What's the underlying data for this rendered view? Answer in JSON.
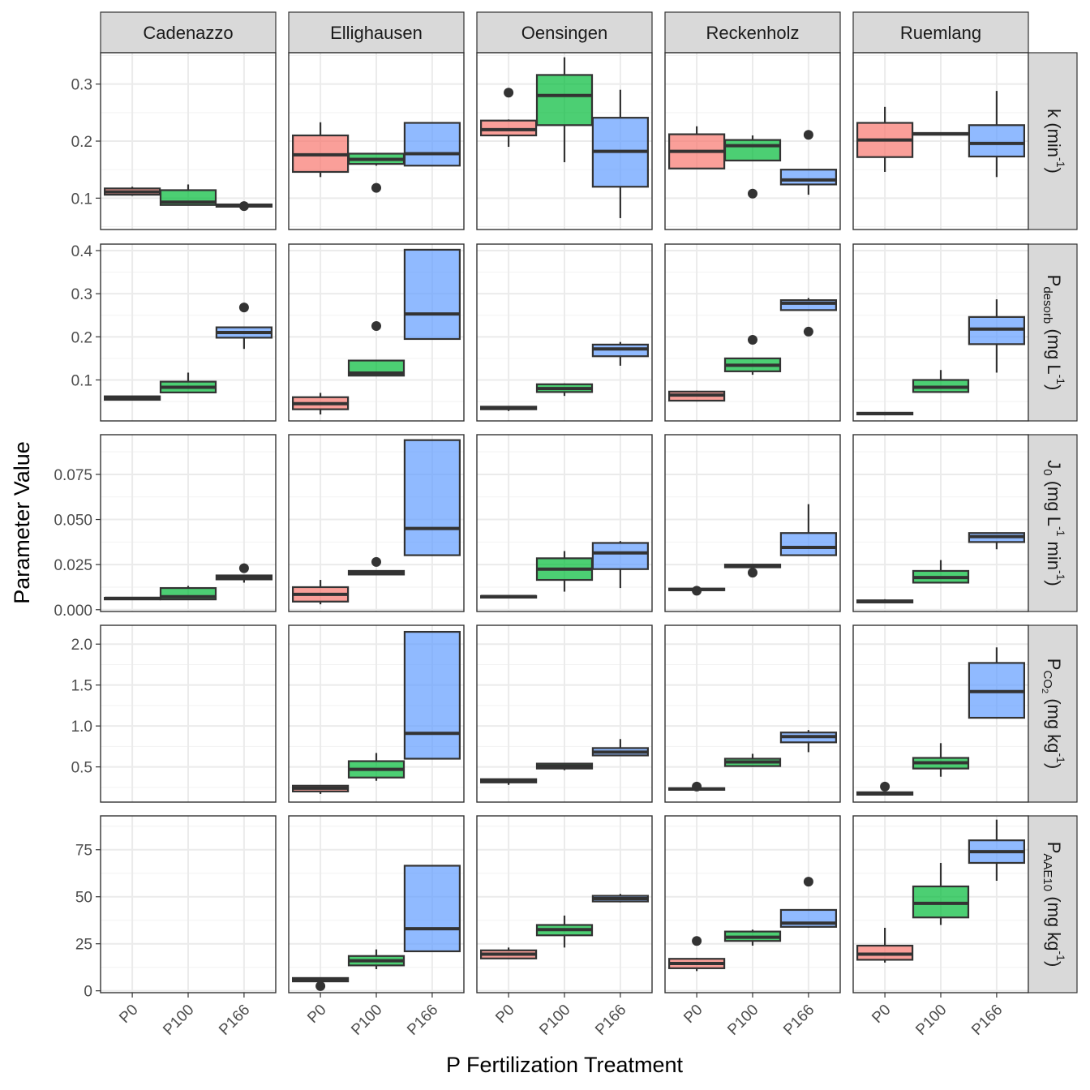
{
  "chart_data": {
    "type": "boxplot",
    "facet_layout": "grid",
    "xlabel": "P Fertilization Treatment",
    "ylabel": "Parameter Value",
    "categories": [
      "P0",
      "P100",
      "P166"
    ],
    "fill_colors": {
      "P0": "#F8766D",
      "P100": "#00BA38",
      "P166": "#619CFF"
    },
    "sites": [
      "Cadenazzo",
      "Ellighausen",
      "Oensingen",
      "Reckenholz",
      "Ruemlang"
    ],
    "parameters": [
      {
        "key": "k",
        "label_main": "k (min",
        "label_sup": "-1",
        "label_tail": ")",
        "ylim": [
          0.045,
          0.355
        ],
        "ticks": [
          0.1,
          0.2,
          0.3
        ],
        "tick_labels": [
          "0.1",
          "0.2",
          "0.3"
        ],
        "data": {
          "Cadenazzo": {
            "P0": {
              "whislo": 0.104,
              "q1": 0.106,
              "med": 0.111,
              "q3": 0.117,
              "whishi": 0.12,
              "outliers": []
            },
            "P100": {
              "whislo": 0.087,
              "q1": 0.088,
              "med": 0.093,
              "q3": 0.114,
              "whishi": 0.124,
              "outliers": []
            },
            "P166": {
              "whislo": 0.084,
              "q1": 0.085,
              "med": 0.087,
              "q3": 0.089,
              "whishi": 0.09,
              "outliers": [
                0.086
              ]
            }
          },
          "Ellighausen": {
            "P0": {
              "whislo": 0.137,
              "q1": 0.146,
              "med": 0.176,
              "q3": 0.21,
              "whishi": 0.233,
              "outliers": []
            },
            "P100": {
              "whislo": 0.157,
              "q1": 0.16,
              "med": 0.168,
              "q3": 0.178,
              "whishi": 0.178,
              "outliers": [
                0.118
              ]
            },
            "P166": {
              "whislo": 0.157,
              "q1": 0.157,
              "med": 0.178,
              "q3": 0.232,
              "whishi": 0.232,
              "outliers": []
            }
          },
          "Oensingen": {
            "P0": {
              "whislo": 0.19,
              "q1": 0.21,
              "med": 0.22,
              "q3": 0.236,
              "whishi": 0.238,
              "outliers": [
                0.285
              ]
            },
            "P100": {
              "whislo": 0.163,
              "q1": 0.228,
              "med": 0.28,
              "q3": 0.316,
              "whishi": 0.347,
              "outliers": []
            },
            "P166": {
              "whislo": 0.065,
              "q1": 0.12,
              "med": 0.182,
              "q3": 0.241,
              "whishi": 0.29,
              "outliers": []
            }
          },
          "Reckenholz": {
            "P0": {
              "whislo": 0.152,
              "q1": 0.152,
              "med": 0.182,
              "q3": 0.212,
              "whishi": 0.226,
              "outliers": []
            },
            "P100": {
              "whislo": 0.166,
              "q1": 0.166,
              "med": 0.192,
              "q3": 0.202,
              "whishi": 0.21,
              "outliers": [
                0.108
              ]
            },
            "P166": {
              "whislo": 0.106,
              "q1": 0.124,
              "med": 0.132,
              "q3": 0.15,
              "whishi": 0.15,
              "outliers": [
                0.211
              ]
            }
          },
          "Ruemlang": {
            "P0": {
              "whislo": 0.146,
              "q1": 0.172,
              "med": 0.202,
              "q3": 0.232,
              "whishi": 0.26,
              "outliers": []
            },
            "P100": {
              "whislo": 0.211,
              "q1": 0.212,
              "med": 0.213,
              "q3": 0.214,
              "whishi": 0.215,
              "outliers": []
            },
            "P166": {
              "whislo": 0.137,
              "q1": 0.173,
              "med": 0.196,
              "q3": 0.228,
              "whishi": 0.288,
              "outliers": []
            }
          }
        }
      },
      {
        "key": "Pdesorb",
        "label_main": "P",
        "label_sub": "desorb",
        "label_rest": " (mg L",
        "label_sup": "-1",
        "label_tail": ")",
        "ylim": [
          0.005,
          0.415
        ],
        "ticks": [
          0.1,
          0.2,
          0.3,
          0.4
        ],
        "tick_labels": [
          "0.1",
          "0.2",
          "0.3",
          "0.4"
        ],
        "data": {
          "Cadenazzo": {
            "P0": {
              "whislo": 0.052,
              "q1": 0.054,
              "med": 0.058,
              "q3": 0.062,
              "whishi": 0.063,
              "outliers": []
            },
            "P100": {
              "whislo": 0.07,
              "q1": 0.071,
              "med": 0.083,
              "q3": 0.096,
              "whishi": 0.117,
              "outliers": []
            },
            "P166": {
              "whislo": 0.172,
              "q1": 0.198,
              "med": 0.21,
              "q3": 0.222,
              "whishi": 0.222,
              "outliers": [
                0.268
              ]
            }
          },
          "Ellighausen": {
            "P0": {
              "whislo": 0.02,
              "q1": 0.032,
              "med": 0.045,
              "q3": 0.06,
              "whishi": 0.07,
              "outliers": []
            },
            "P100": {
              "whislo": 0.11,
              "q1": 0.11,
              "med": 0.116,
              "q3": 0.145,
              "whishi": 0.145,
              "outliers": [
                0.225
              ]
            },
            "P166": {
              "whislo": 0.195,
              "q1": 0.195,
              "med": 0.253,
              "q3": 0.402,
              "whishi": 0.402,
              "outliers": []
            }
          },
          "Oensingen": {
            "P0": {
              "whislo": 0.028,
              "q1": 0.032,
              "med": 0.035,
              "q3": 0.038,
              "whishi": 0.038,
              "outliers": []
            },
            "P100": {
              "whislo": 0.063,
              "q1": 0.072,
              "med": 0.08,
              "q3": 0.09,
              "whishi": 0.092,
              "outliers": []
            },
            "P166": {
              "whislo": 0.133,
              "q1": 0.155,
              "med": 0.172,
              "q3": 0.182,
              "whishi": 0.188,
              "outliers": []
            }
          },
          "Reckenholz": {
            "P0": {
              "whislo": 0.05,
              "q1": 0.052,
              "med": 0.065,
              "q3": 0.073,
              "whishi": 0.075,
              "outliers": []
            },
            "P100": {
              "whislo": 0.112,
              "q1": 0.12,
              "med": 0.134,
              "q3": 0.15,
              "whishi": 0.15,
              "outliers": [
                0.193
              ]
            },
            "P166": {
              "whislo": 0.262,
              "q1": 0.262,
              "med": 0.278,
              "q3": 0.285,
              "whishi": 0.29,
              "outliers": [
                0.212
              ]
            }
          },
          "Ruemlang": {
            "P0": {
              "whislo": 0.018,
              "q1": 0.02,
              "med": 0.022,
              "q3": 0.024,
              "whishi": 0.025,
              "outliers": []
            },
            "P100": {
              "whislo": 0.07,
              "q1": 0.072,
              "med": 0.083,
              "q3": 0.1,
              "whishi": 0.123,
              "outliers": []
            },
            "P166": {
              "whislo": 0.117,
              "q1": 0.183,
              "med": 0.218,
              "q3": 0.246,
              "whishi": 0.287,
              "outliers": []
            }
          }
        }
      },
      {
        "key": "J0",
        "label_main": "J",
        "label_sub": "0",
        "label_rest": " (mg L",
        "label_sup": "-1",
        "label_mid": " min",
        "label_sup2": "-1",
        "label_tail": ")",
        "ylim": [
          -0.001,
          0.097
        ],
        "ticks": [
          0.0,
          0.025,
          0.05,
          0.075
        ],
        "tick_labels": [
          "0.000",
          "0.025",
          "0.050",
          "0.075"
        ],
        "data": {
          "Cadenazzo": {
            "P0": {
              "whislo": 0.0058,
              "q1": 0.006,
              "med": 0.0063,
              "q3": 0.0066,
              "whishi": 0.0068,
              "outliers": []
            },
            "P100": {
              "whislo": 0.0055,
              "q1": 0.0057,
              "med": 0.0072,
              "q3": 0.012,
              "whishi": 0.0132,
              "outliers": []
            },
            "P166": {
              "whislo": 0.015,
              "q1": 0.0168,
              "med": 0.0178,
              "q3": 0.019,
              "whishi": 0.019,
              "outliers": [
                0.023
              ]
            }
          },
          "Ellighausen": {
            "P0": {
              "whislo": 0.003,
              "q1": 0.0045,
              "med": 0.0085,
              "q3": 0.0125,
              "whishi": 0.0165,
              "outliers": []
            },
            "P100": {
              "whislo": 0.0192,
              "q1": 0.0195,
              "med": 0.0205,
              "q3": 0.0215,
              "whishi": 0.0218,
              "outliers": [
                0.0265
              ]
            },
            "P166": {
              "whislo": 0.03,
              "q1": 0.0302,
              "med": 0.045,
              "q3": 0.094,
              "whishi": 0.094,
              "outliers": []
            }
          },
          "Oensingen": {
            "P0": {
              "whislo": 0.0068,
              "q1": 0.007,
              "med": 0.0073,
              "q3": 0.0076,
              "whishi": 0.0078,
              "outliers": []
            },
            "P100": {
              "whislo": 0.01,
              "q1": 0.0165,
              "med": 0.0225,
              "q3": 0.0285,
              "whishi": 0.0325,
              "outliers": []
            },
            "P166": {
              "whislo": 0.012,
              "q1": 0.0225,
              "med": 0.0315,
              "q3": 0.037,
              "whishi": 0.038,
              "outliers": []
            }
          },
          "Reckenholz": {
            "P0": {
              "whislo": 0.0105,
              "q1": 0.0108,
              "med": 0.0112,
              "q3": 0.0117,
              "whishi": 0.012,
              "outliers": [
                0.0105
              ]
            },
            "P100": {
              "whislo": 0.0232,
              "q1": 0.0235,
              "med": 0.0242,
              "q3": 0.025,
              "whishi": 0.0253,
              "outliers": [
                0.0205
              ]
            },
            "P166": {
              "whislo": 0.03,
              "q1": 0.0302,
              "med": 0.0345,
              "q3": 0.0425,
              "whishi": 0.0585,
              "outliers": []
            }
          },
          "Ruemlang": {
            "P0": {
              "whislo": 0.0035,
              "q1": 0.004,
              "med": 0.0045,
              "q3": 0.0052,
              "whishi": 0.0058,
              "outliers": []
            },
            "P100": {
              "whislo": 0.0145,
              "q1": 0.015,
              "med": 0.0178,
              "q3": 0.0215,
              "whishi": 0.0275,
              "outliers": []
            },
            "P166": {
              "whislo": 0.0335,
              "q1": 0.0375,
              "med": 0.0405,
              "q3": 0.0425,
              "whishi": 0.0425,
              "outliers": []
            }
          }
        }
      },
      {
        "key": "PCO2",
        "label_main": "P",
        "label_sub": "CO",
        "label_subsub": "2",
        "label_rest": " (mg kg",
        "label_sup": "-1",
        "label_tail": ")",
        "ylim": [
          0.07,
          2.23
        ],
        "ticks": [
          0.5,
          1.0,
          1.5,
          2.0
        ],
        "tick_labels": [
          "0.5",
          "1.0",
          "1.5",
          "2.0"
        ],
        "data": {
          "Cadenazzo": {},
          "Ellighausen": {
            "P0": {
              "whislo": 0.17,
              "q1": 0.2,
              "med": 0.24,
              "q3": 0.27,
              "whishi": 0.27,
              "outliers": []
            },
            "P100": {
              "whislo": 0.33,
              "q1": 0.37,
              "med": 0.47,
              "q3": 0.57,
              "whishi": 0.67,
              "outliers": []
            },
            "P166": {
              "whislo": 0.6,
              "q1": 0.6,
              "med": 0.91,
              "q3": 2.15,
              "whishi": 2.15,
              "outliers": []
            }
          },
          "Oensingen": {
            "P0": {
              "whislo": 0.28,
              "q1": 0.31,
              "med": 0.33,
              "q3": 0.35,
              "whishi": 0.35,
              "outliers": []
            },
            "P100": {
              "whislo": 0.46,
              "q1": 0.48,
              "med": 0.51,
              "q3": 0.54,
              "whishi": 0.55,
              "outliers": []
            },
            "P166": {
              "whislo": 0.63,
              "q1": 0.64,
              "med": 0.68,
              "q3": 0.73,
              "whishi": 0.84,
              "outliers": []
            }
          },
          "Reckenholz": {
            "P0": {
              "whislo": 0.21,
              "q1": 0.22,
              "med": 0.23,
              "q3": 0.24,
              "whishi": 0.25,
              "outliers": [
                0.26
              ]
            },
            "P100": {
              "whislo": 0.5,
              "q1": 0.51,
              "med": 0.56,
              "q3": 0.6,
              "whishi": 0.66,
              "outliers": []
            },
            "P166": {
              "whislo": 0.68,
              "q1": 0.8,
              "med": 0.87,
              "q3": 0.92,
              "whishi": 0.95,
              "outliers": []
            }
          },
          "Ruemlang": {
            "P0": {
              "whislo": 0.15,
              "q1": 0.16,
              "med": 0.17,
              "q3": 0.19,
              "whishi": 0.2,
              "outliers": [
                0.26
              ]
            },
            "P100": {
              "whislo": 0.38,
              "q1": 0.48,
              "med": 0.55,
              "q3": 0.61,
              "whishi": 0.79,
              "outliers": []
            },
            "P166": {
              "whislo": 1.09,
              "q1": 1.1,
              "med": 1.42,
              "q3": 1.77,
              "whishi": 1.96,
              "outliers": []
            }
          }
        }
      },
      {
        "key": "PAAE10",
        "label_main": "P",
        "label_sub": "AAE10",
        "label_rest": " (mg kg",
        "label_sup": "-1",
        "label_tail": ")",
        "ylim": [
          -1,
          93
        ],
        "ticks": [
          0,
          25,
          50,
          75
        ],
        "tick_labels": [
          "0",
          "25",
          "50",
          "75"
        ],
        "data": {
          "Cadenazzo": {},
          "Ellighausen": {
            "P0": {
              "whislo": 4.5,
              "q1": 5,
              "med": 5.8,
              "q3": 6.8,
              "whishi": 7,
              "outliers": [
                2.5
              ]
            },
            "P100": {
              "whislo": 11.5,
              "q1": 13.5,
              "med": 16,
              "q3": 18.5,
              "whishi": 22,
              "outliers": []
            },
            "P166": {
              "whislo": 21,
              "q1": 21,
              "med": 33,
              "q3": 66.5,
              "whishi": 66.5,
              "outliers": []
            }
          },
          "Oensingen": {
            "P0": {
              "whislo": 17,
              "q1": 17.2,
              "med": 19.5,
              "q3": 21.5,
              "whishi": 23,
              "outliers": []
            },
            "P100": {
              "whislo": 23,
              "q1": 29.5,
              "med": 32.5,
              "q3": 35,
              "whishi": 40,
              "outliers": []
            },
            "P166": {
              "whislo": 47,
              "q1": 47.5,
              "med": 49,
              "q3": 50.5,
              "whishi": 51.5,
              "outliers": []
            }
          },
          "Reckenholz": {
            "P0": {
              "whislo": 10.5,
              "q1": 12,
              "med": 14.5,
              "q3": 17,
              "whishi": 17.5,
              "outliers": [
                26.5
              ]
            },
            "P100": {
              "whislo": 24,
              "q1": 26.5,
              "med": 28.5,
              "q3": 31.5,
              "whishi": 32.5,
              "outliers": []
            },
            "P166": {
              "whislo": 33.5,
              "q1": 34,
              "med": 36,
              "q3": 43,
              "whishi": 43,
              "outliers": [
                58
              ]
            }
          },
          "Ruemlang": {
            "P0": {
              "whislo": 15,
              "q1": 16.5,
              "med": 19.5,
              "q3": 24,
              "whishi": 33.5,
              "outliers": []
            },
            "P100": {
              "whislo": 35,
              "q1": 39,
              "med": 46.5,
              "q3": 55.5,
              "whishi": 68,
              "outliers": []
            },
            "P166": {
              "whislo": 58.5,
              "q1": 68,
              "med": 74,
              "q3": 80,
              "whishi": 91,
              "outliers": []
            }
          }
        }
      }
    ]
  }
}
